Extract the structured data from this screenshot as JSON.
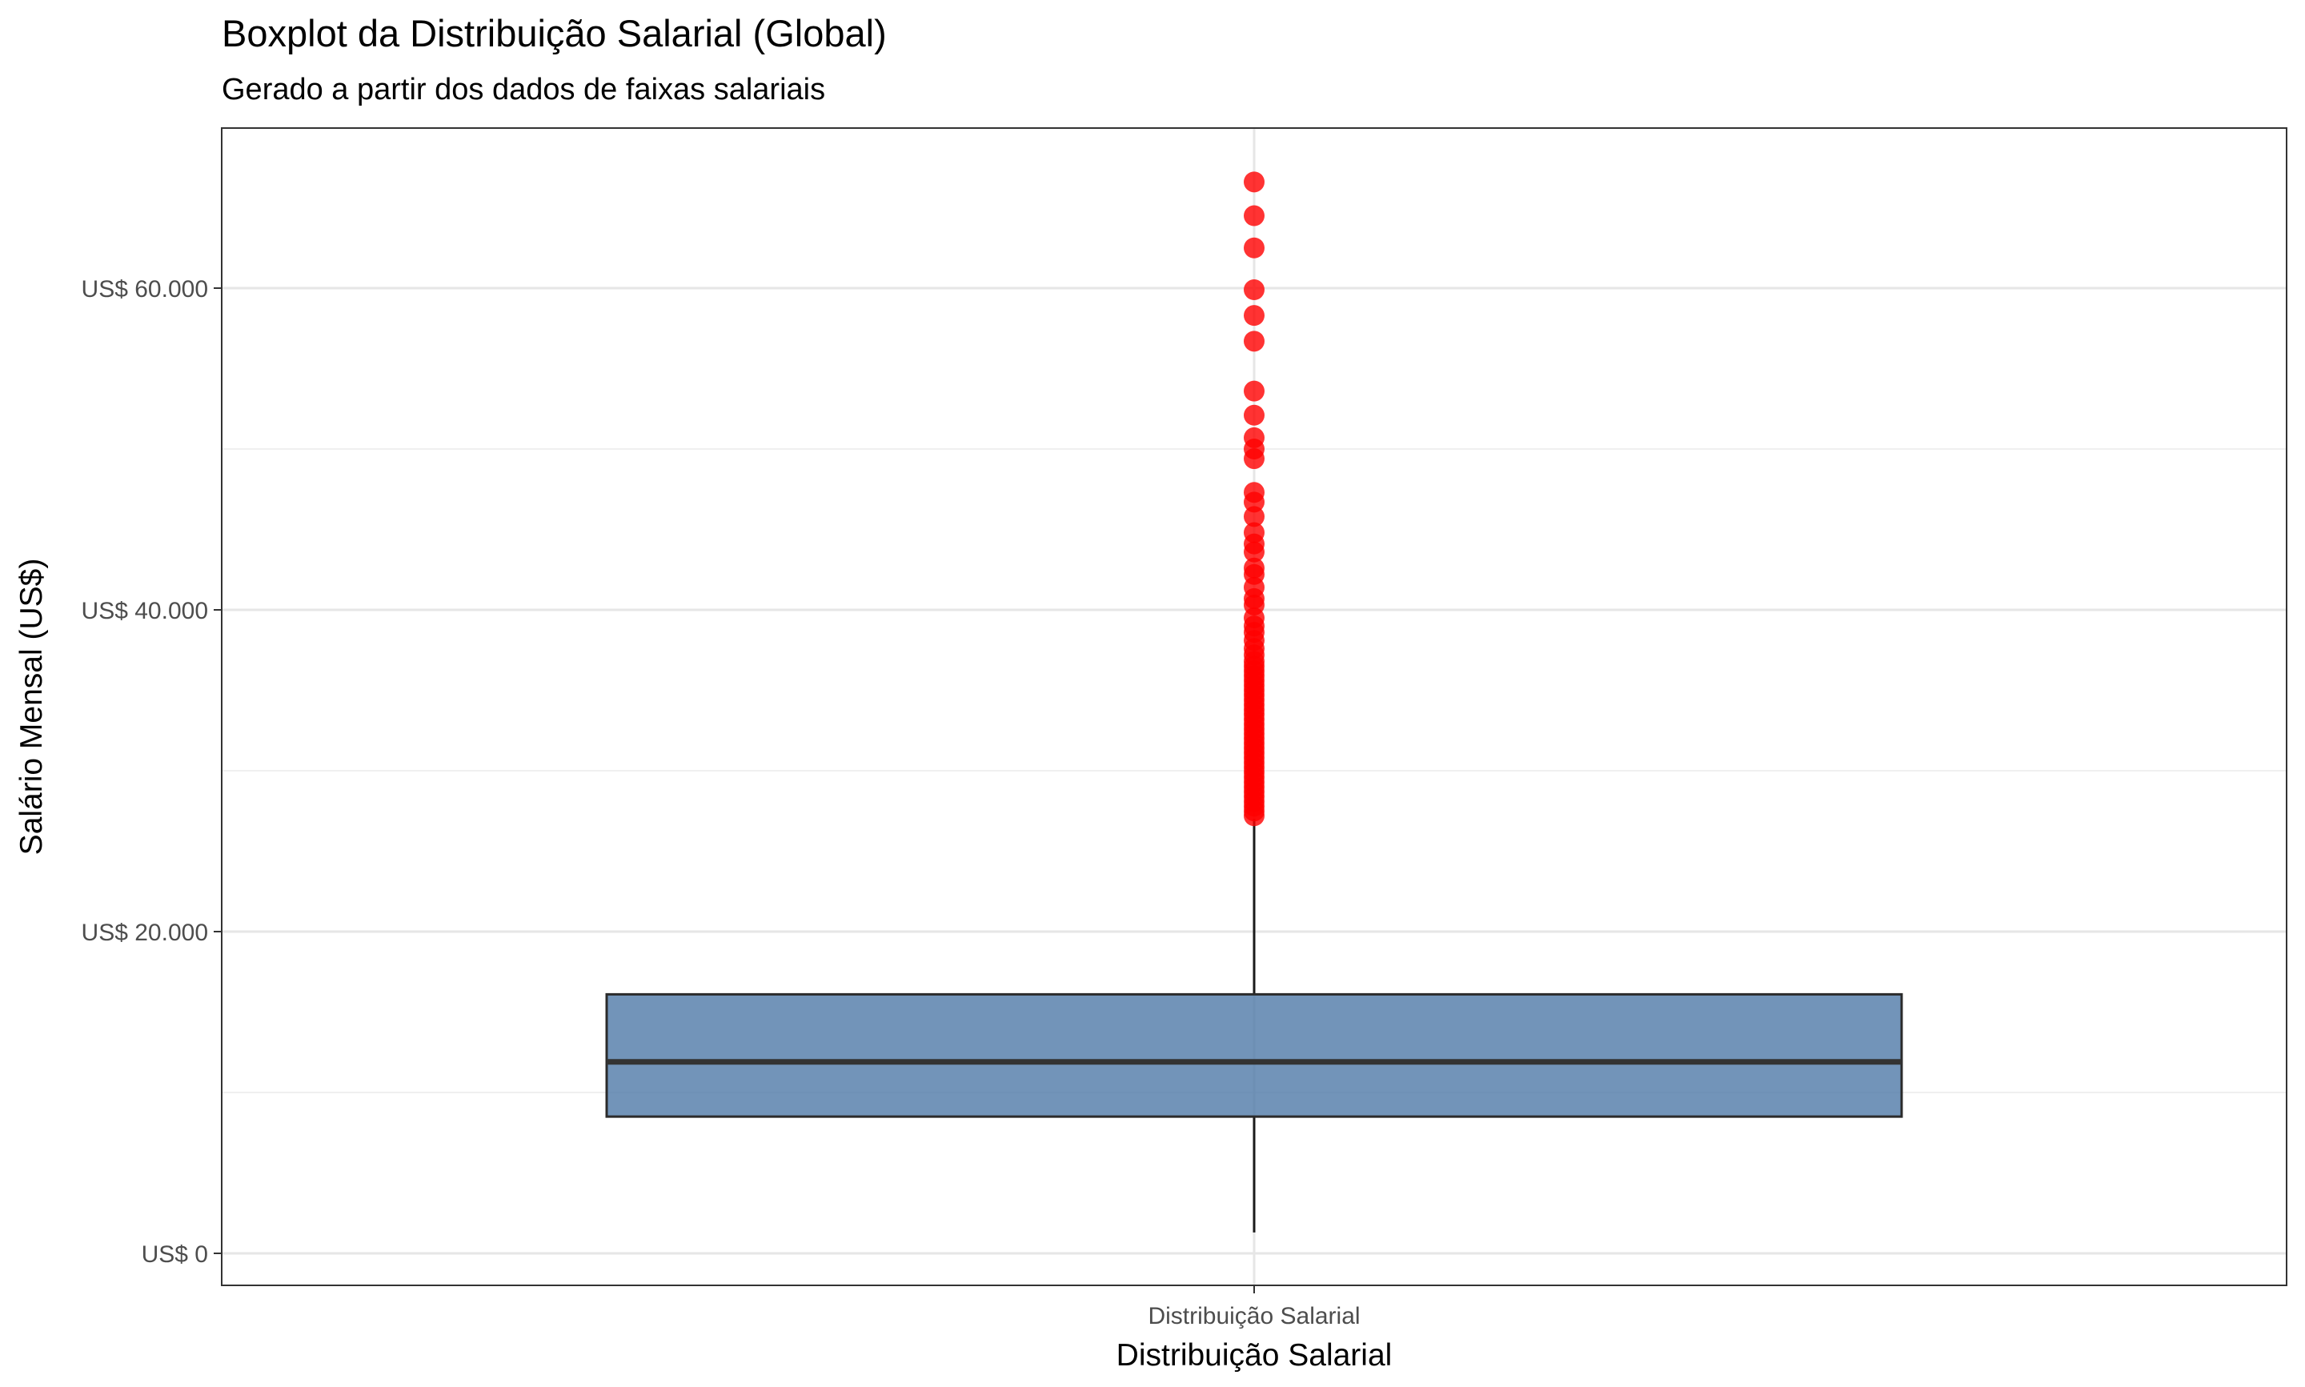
{
  "chart_data": {
    "type": "boxplot",
    "title": "Boxplot da Distribuição Salarial (Global)",
    "subtitle": "Gerado a partir dos dados de faixas salariais",
    "xlabel": "Distribuição Salarial",
    "ylabel": "Salário Mensal (US$)",
    "categories": [
      "Distribuição Salarial"
    ],
    "ylim": [
      -2000,
      70000
    ],
    "y_ticks": [
      0,
      20000,
      40000,
      60000
    ],
    "y_tick_labels": [
      "US$ 0",
      "US$ 20.000",
      "US$ 40.000",
      "US$ 60.000"
    ],
    "grid": true,
    "box": {
      "category": "Distribuição Salarial",
      "whisker_low": 1300,
      "q1": 8500,
      "median": 11900,
      "q3": 16100,
      "whisker_high": 27000
    },
    "outliers": [
      27200,
      27500,
      27800,
      28100,
      28400,
      28700,
      29000,
      29300,
      29600,
      29900,
      30200,
      30500,
      30800,
      31100,
      31400,
      31700,
      32000,
      32300,
      32600,
      32900,
      33200,
      33500,
      33800,
      34100,
      34400,
      34700,
      35000,
      35300,
      35600,
      35900,
      36200,
      36500,
      36800,
      37200,
      37600,
      38100,
      38600,
      39000,
      39500,
      40300,
      40700,
      41400,
      42200,
      42600,
      43600,
      44100,
      44800,
      45800,
      46700,
      47300,
      49400,
      50000,
      50700,
      52100,
      53600,
      56700,
      58300,
      59900,
      62500,
      64500,
      66600
    ],
    "colors": {
      "box_fill": "#4f79a8",
      "box_border": "#2b2b2b",
      "median_line": "#333333",
      "whisker": "#1a1a1a",
      "outlier": "#ff0000",
      "grid_major": "#e6e6e6",
      "grid_minor": "#f0f0f0",
      "panel_border": "#333333",
      "axis_text": "#4d4d4d",
      "title_text": "#000000"
    }
  }
}
